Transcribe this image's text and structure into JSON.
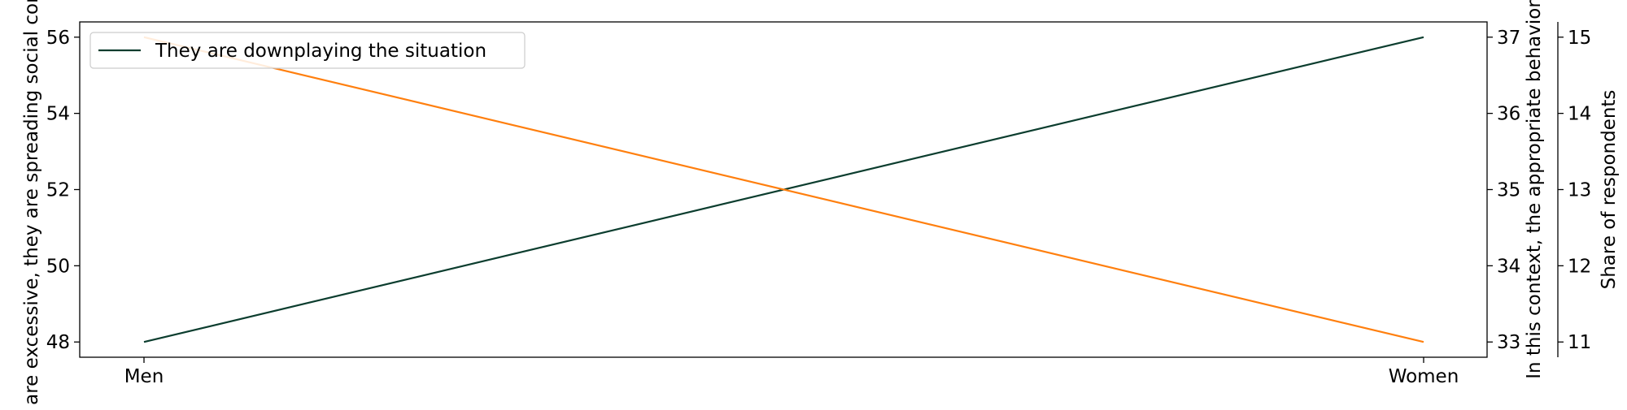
{
  "chart_data": {
    "type": "line",
    "categories": [
      "Men",
      "Women"
    ],
    "axes": {
      "left": {
        "label": "... are excessive, they are spreading social concern",
        "range": [
          47.6,
          56.4
        ],
        "ticks": [
          "48",
          "50",
          "52",
          "54",
          "56"
        ]
      },
      "right1": {
        "label": "In this context, the appropriate behavior",
        "range": [
          32.8,
          37.2
        ],
        "ticks": [
          "33",
          "34",
          "35",
          "36",
          "37"
        ]
      },
      "right2": {
        "label": "Share of respondents",
        "range": [
          10.8,
          15.2
        ],
        "ticks": [
          "11",
          "12",
          "13",
          "14",
          "15"
        ]
      }
    },
    "series": [
      {
        "name": "They are downplaying the situation",
        "axis": "left",
        "color": "#0b3d2e",
        "values": [
          48,
          56
        ]
      },
      {
        "axis": "left",
        "color": "#ff7f0e",
        "values": [
          56,
          48
        ]
      }
    ],
    "legend": {
      "position": "top-left",
      "entries": [
        "They are downplaying the situation"
      ]
    },
    "grid": false
  }
}
